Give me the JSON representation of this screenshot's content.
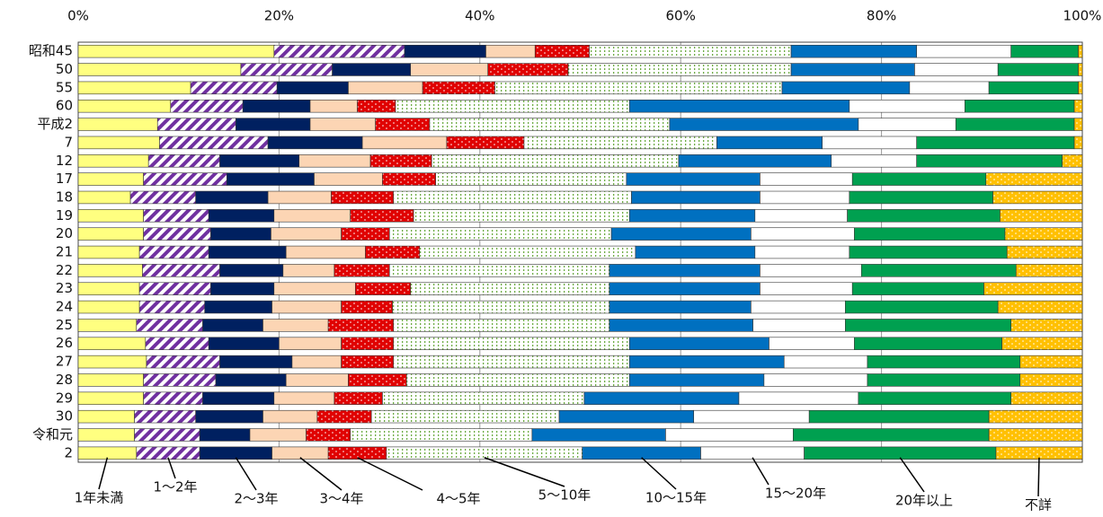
{
  "chart_data": {
    "type": "stacked_bar_horizontal_100",
    "categories": [
      "昭和45",
      "50",
      "55",
      "60",
      "平成2",
      "7",
      "12",
      "17",
      "18",
      "19",
      "20",
      "21",
      "22",
      "23",
      "24",
      "25",
      "26",
      "27",
      "28",
      "29",
      "30",
      "令和元",
      "2"
    ],
    "xlim": [
      0,
      100
    ],
    "xticks": [
      {
        "value": 0,
        "label": "0%"
      },
      {
        "value": 20,
        "label": "20%"
      },
      {
        "value": 40,
        "label": "40%"
      },
      {
        "value": 60,
        "label": "60%"
      },
      {
        "value": 80,
        "label": "80%"
      },
      {
        "value": 100,
        "label": "100%"
      }
    ],
    "grid": true,
    "series": [
      {
        "name": "1年未満",
        "color": "#ffff80",
        "values": [
          19.5,
          16.2,
          11.2,
          9.2,
          7.9,
          8.1,
          7,
          6.5,
          5.2,
          6.5,
          6.5,
          6.1,
          6.4,
          6.1,
          6.1,
          5.8,
          6.7,
          6.8,
          6.5,
          6.5,
          5.6,
          5.6,
          5.8
        ]
      },
      {
        "name": "1～2年",
        "color": "#7030a0",
        "values": [
          13,
          9.1,
          8.6,
          7.2,
          7.8,
          10.8,
          7.1,
          8.3,
          6.5,
          6.5,
          6.7,
          6.9,
          7.7,
          7.1,
          6.5,
          6.6,
          6.3,
          7.3,
          7.2,
          5.9,
          6.1,
          6.5,
          6.3
        ]
      },
      {
        "name": "2～3年",
        "color": "#002060",
        "values": [
          8.1,
          7.8,
          7.1,
          6.7,
          7.4,
          9.4,
          7.9,
          8.7,
          7.2,
          6.5,
          6,
          7.7,
          6.3,
          6.3,
          6.7,
          6,
          7,
          7.2,
          7,
          7.1,
          6.7,
          5,
          7.2
        ]
      },
      {
        "name": "3～4年",
        "color": "#fcd5b4",
        "values": [
          4.9,
          7.7,
          7.4,
          4.7,
          6.5,
          8.4,
          7.1,
          6.8,
          6.3,
          7.6,
          7,
          7.9,
          5.1,
          8.1,
          6.9,
          6.5,
          6.2,
          4.9,
          6.2,
          6,
          5.4,
          5.6,
          5.6
        ]
      },
      {
        "name": "4～5年",
        "color": "#e00000",
        "values": [
          5.4,
          8,
          7.2,
          3.8,
          5.4,
          7.7,
          6.1,
          5.3,
          6.2,
          6.3,
          4.8,
          5.4,
          5.5,
          5.5,
          5.1,
          6.5,
          5.2,
          5.2,
          5.8,
          4.8,
          5.4,
          4.4,
          5.8
        ]
      },
      {
        "name": "5～10年",
        "color": "#70ad47",
        "values": [
          20.1,
          22.2,
          28.6,
          23.3,
          23.9,
          19.2,
          24.6,
          19,
          23.7,
          21.5,
          22.1,
          21.5,
          21.9,
          19.8,
          21.6,
          21.5,
          23.5,
          23.5,
          22.2,
          20.1,
          18.7,
          18.1,
          19.5
        ]
      },
      {
        "name": "10～15年",
        "color": "#0070c0",
        "values": [
          12.5,
          12.3,
          12.7,
          21.9,
          18.8,
          10.5,
          15.2,
          13.3,
          12.8,
          12.5,
          13.9,
          11.9,
          15,
          15,
          14.1,
          14.3,
          13.9,
          15.4,
          13.4,
          15.4,
          13.4,
          13.3,
          11.8
        ]
      },
      {
        "name": "15～20年",
        "color": "#ffffff",
        "values": [
          9.4,
          8.3,
          7.9,
          11.5,
          9.7,
          9.4,
          8.5,
          9.2,
          8.9,
          9.2,
          10.3,
          9.4,
          10.1,
          9.2,
          9.4,
          9.2,
          8.5,
          8.3,
          10.3,
          11.9,
          11.5,
          12.7,
          10.3
        ]
      },
      {
        "name": "20年以上",
        "color": "#00a050",
        "values": [
          6.7,
          8,
          8.9,
          10.9,
          11.8,
          15.7,
          14.5,
          13.3,
          14.3,
          15.2,
          15,
          15.7,
          15.4,
          13.1,
          15.2,
          16.5,
          14.7,
          15.2,
          15.2,
          15.2,
          17.9,
          19.5,
          19.1
        ]
      },
      {
        "name": "不詳",
        "color": "#ffc000",
        "values": [
          0.4,
          0.4,
          0.4,
          0.8,
          0.8,
          0.8,
          2,
          9.6,
          8.9,
          8.2,
          7.7,
          7.5,
          6.6,
          9.8,
          8.4,
          7.1,
          8,
          6.2,
          6.2,
          7.1,
          9.3,
          9.3,
          8.6
        ]
      }
    ]
  }
}
